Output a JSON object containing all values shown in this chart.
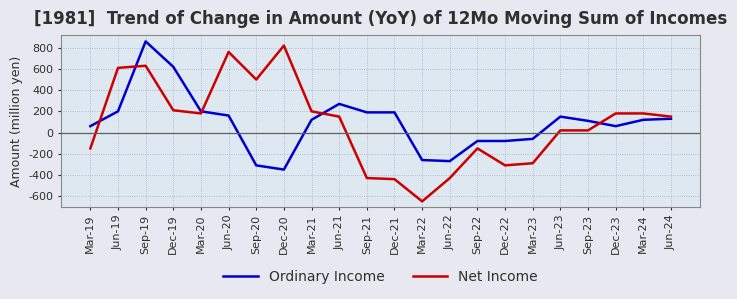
{
  "title": "[1981]  Trend of Change in Amount (YoY) of 12Mo Moving Sum of Incomes",
  "ylabel": "Amount (million yen)",
  "ylim": [
    -700,
    920
  ],
  "yticks": [
    -600,
    -400,
    -200,
    0,
    200,
    400,
    600,
    800
  ],
  "x_labels": [
    "Mar-19",
    "Jun-19",
    "Sep-19",
    "Dec-19",
    "Mar-20",
    "Jun-20",
    "Sep-20",
    "Dec-20",
    "Mar-21",
    "Jun-21",
    "Sep-21",
    "Dec-21",
    "Mar-22",
    "Jun-22",
    "Sep-22",
    "Dec-22",
    "Mar-23",
    "Jun-23",
    "Sep-23",
    "Dec-23",
    "Mar-24",
    "Jun-24"
  ],
  "ordinary_income": [
    60,
    200,
    860,
    620,
    200,
    160,
    -310,
    -350,
    120,
    270,
    190,
    190,
    -260,
    -270,
    -80,
    -80,
    -60,
    150,
    110,
    60,
    120,
    130
  ],
  "net_income": [
    -150,
    610,
    630,
    210,
    180,
    760,
    500,
    820,
    200,
    150,
    -430,
    -440,
    -650,
    -430,
    -150,
    -310,
    -290,
    20,
    20,
    180,
    180,
    150
  ],
  "ordinary_color": "#0000cc",
  "net_color": "#cc0000",
  "background_color": "#e8e8f0",
  "plot_bg_color": "#dde8f0",
  "grid_color": "#aaaacc",
  "title_color": "#303030",
  "title_fontsize": 12,
  "legend_fontsize": 10,
  "tick_fontsize": 8,
  "ylabel_fontsize": 9
}
